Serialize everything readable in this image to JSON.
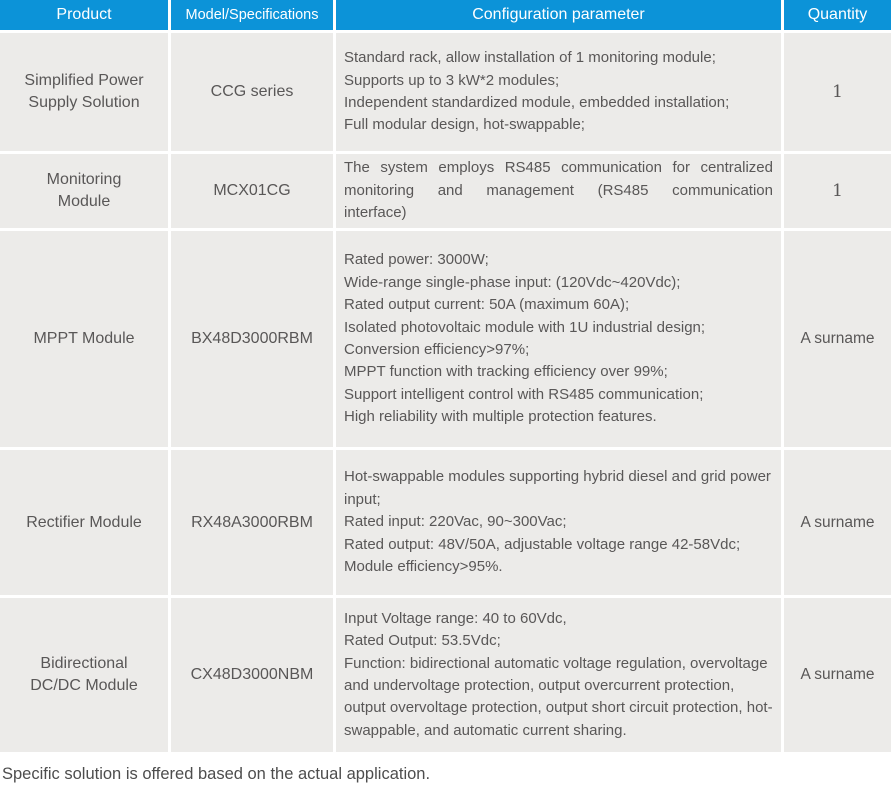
{
  "colors": {
    "header_bg": "#0C93D8",
    "header_text": "#FFFFFF",
    "cell_bg": "#ECEBE9",
    "cell_text": "#595757",
    "page_bg": "#FFFFFF"
  },
  "table": {
    "headers": [
      "Product",
      "Model/Specifications",
      "Configuration parameter",
      "Quantity"
    ],
    "rows": [
      {
        "product": "Simplified Power Supply Solution",
        "model": "CCG series",
        "config": "Standard rack, allow installation of 1 monitoring module;\nSupports up to 3 kW*2 modules;\nIndependent standardized module, embedded installation;\nFull modular design, hot-swappable;",
        "quantity": "1"
      },
      {
        "product": "Monitoring Module",
        "model": "MCX01CG",
        "config": "The system employs RS485 communication for centralized monitoring and management (RS485 communication interface)",
        "quantity": "1"
      },
      {
        "product": "MPPT Module",
        "model": "BX48D3000RBM",
        "config": "Rated power: 3000W;\nWide-range single-phase input: (120Vdc~420Vdc);\nRated output current: 50A (maximum 60A);\nIsolated photovoltaic module with 1U industrial design;\nConversion efficiency>97%;\nMPPT function with tracking efficiency over 99%;\nSupport intelligent control with RS485 communication;\nHigh reliability with multiple protection features.",
        "quantity": "A surname"
      },
      {
        "product": "Rectifier Module",
        "model": "RX48A3000RBM",
        "config": "Hot-swappable modules supporting hybrid diesel and grid power input;\nRated input: 220Vac, 90~300Vac;\nRated output: 48V/50A, adjustable voltage range 42-58Vdc;\nModule efficiency>95%.",
        "quantity": "A surname"
      },
      {
        "product": "Bidirectional DC/DC Module",
        "model": "CX48D3000NBM",
        "config": "Input Voltage range: 40 to 60Vdc,\nRated Output: 53.5Vdc;\nFunction: bidirectional automatic voltage regulation, overvoltage and undervoltage protection, output overcurrent protection, output overvoltage protection, output short circuit protection, hot-swappable, and automatic current sharing.",
        "quantity": "A surname"
      }
    ]
  },
  "footer": {
    "note": "Specific solution is offered based on the actual application."
  }
}
